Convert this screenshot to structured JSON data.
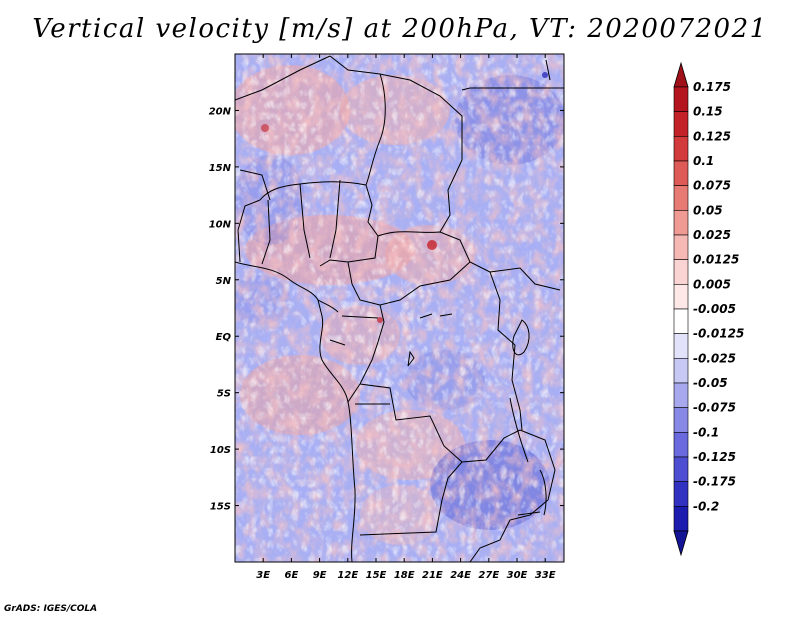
{
  "title": "Vertical velocity [m/s] at 200hPa, VT: 2020072021",
  "credit": "GrADS: IGES/COLA",
  "map": {
    "lon_range": [
      0,
      35
    ],
    "lat_range": [
      -20,
      25
    ],
    "x_ticks": [
      {
        "lon": 3,
        "label": "3E"
      },
      {
        "lon": 6,
        "label": "6E"
      },
      {
        "lon": 9,
        "label": "9E"
      },
      {
        "lon": 12,
        "label": "12E"
      },
      {
        "lon": 15,
        "label": "15E"
      },
      {
        "lon": 18,
        "label": "18E"
      },
      {
        "lon": 21,
        "label": "21E"
      },
      {
        "lon": 24,
        "label": "24E"
      },
      {
        "lon": 27,
        "label": "27E"
      },
      {
        "lon": 30,
        "label": "30E"
      },
      {
        "lon": 33,
        "label": "33E"
      }
    ],
    "y_ticks": [
      {
        "lat": 20,
        "label": "20N"
      },
      {
        "lat": 15,
        "label": "15N"
      },
      {
        "lat": 10,
        "label": "10N"
      },
      {
        "lat": 5,
        "label": "5N"
      },
      {
        "lat": 0,
        "label": "EQ"
      },
      {
        "lat": -5,
        "label": "5S"
      },
      {
        "lat": -10,
        "label": "10S"
      },
      {
        "lat": -15,
        "label": "15S"
      }
    ]
  },
  "colorbar": {
    "levels": [
      {
        "label": "0.175",
        "color": "#b4141e"
      },
      {
        "label": "0.15",
        "color": "#c42229"
      },
      {
        "label": "0.125",
        "color": "#d23a3c"
      },
      {
        "label": "0.1",
        "color": "#de5a56"
      },
      {
        "label": "0.075",
        "color": "#e87a74"
      },
      {
        "label": "0.05",
        "color": "#f09a94"
      },
      {
        "label": "0.025",
        "color": "#f6b8b4"
      },
      {
        "label": "0.0125",
        "color": "#fad4d2"
      },
      {
        "label": "0.005",
        "color": "#fde8e7"
      },
      {
        "label": "-0.005",
        "color": "#ffffff"
      },
      {
        "label": "-0.0125",
        "color": "#e2e2fa"
      },
      {
        "label": "-0.025",
        "color": "#c8c8f4"
      },
      {
        "label": "-0.05",
        "color": "#a8a8ee"
      },
      {
        "label": "-0.075",
        "color": "#8888e6"
      },
      {
        "label": "-0.1",
        "color": "#6a6ade"
      },
      {
        "label": "-0.125",
        "color": "#4e4ed2"
      },
      {
        "label": "-0.175",
        "color": "#3232c2"
      },
      {
        "label": "-0.2",
        "color": "#1c1cae"
      }
    ],
    "top_arrow_color": "#a01018",
    "bottom_arrow_color": "#141496"
  }
}
